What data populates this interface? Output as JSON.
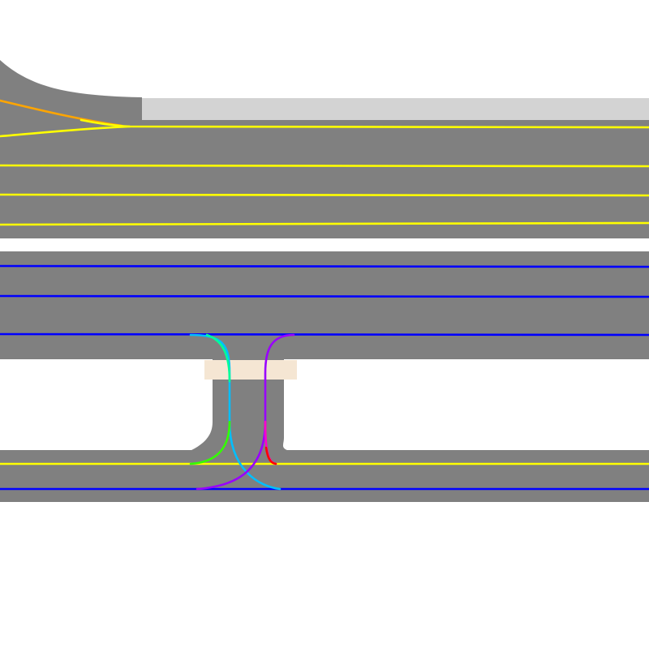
{
  "map": {
    "background_color": "#ffffff",
    "road_color": "#808080",
    "sidewalk_color": "#d3d3d3",
    "crosswalk_color": "#f5e6d3",
    "lane_colors": {
      "eastbound": "#ffff00",
      "westbound": "#0000ff",
      "merge": "#ffa500",
      "turn_green": "#33ff00",
      "turn_cyan": "#00bfff",
      "turn_spring": "#00ff99",
      "turn_purple": "#9900ff",
      "turn_magenta": "#ff00cc",
      "turn_red": "#ff0000"
    }
  }
}
